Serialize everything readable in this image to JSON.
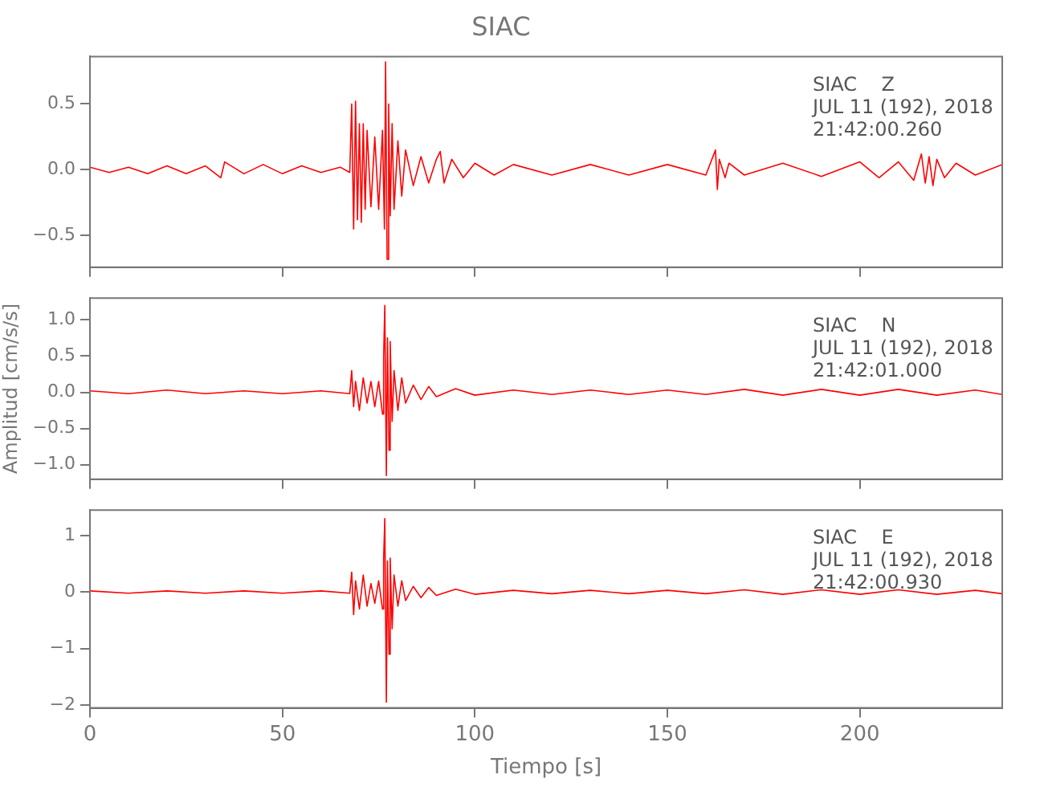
{
  "chart_data": [
    {
      "type": "line",
      "title": "SIAC",
      "xlim": [
        0,
        237
      ],
      "xticks": [
        0,
        50,
        100,
        150,
        200
      ],
      "ylim": [
        -0.74,
        0.86
      ],
      "yticks": [
        {
          "value": -0.5,
          "label": "−0.5"
        },
        {
          "value": 0,
          "label": "0.0"
        },
        {
          "value": 0.5,
          "label": "0.5"
        }
      ],
      "tick_labels": "y",
      "grid": false,
      "legend": false,
      "marker": "none",
      "line_style": "solid",
      "annotations": [
        "SIAC    Z",
        "JUL 11 (192), 2018",
        "21:42:00.260"
      ],
      "series": [
        {
          "color": "#ff0000",
          "x": [
            0,
            5,
            10,
            15,
            20,
            25,
            30,
            34,
            35,
            40,
            45,
            50,
            55,
            60,
            65,
            67.5,
            68,
            68.5,
            69,
            69.5,
            70,
            70.5,
            71,
            71.5,
            72,
            73,
            74,
            75,
            76,
            76.5,
            76.8,
            77.2,
            77.6,
            78,
            78.5,
            79,
            80,
            81,
            82,
            84,
            86,
            88,
            90,
            91,
            92,
            94,
            97,
            100,
            105,
            110,
            120,
            130,
            140,
            150,
            160,
            162.5,
            163,
            163.5,
            165,
            166,
            170,
            180,
            190,
            200,
            205,
            210,
            214,
            216,
            217,
            218,
            219,
            220,
            222,
            225,
            230,
            237
          ],
          "values": [
            0.02,
            -0.02,
            0.02,
            -0.03,
            0.03,
            -0.03,
            0.03,
            -0.06,
            0.06,
            -0.03,
            0.04,
            -0.03,
            0.03,
            -0.02,
            0.02,
            -0.02,
            0.5,
            -0.45,
            0.52,
            -0.38,
            0.35,
            -0.4,
            0.35,
            -0.3,
            0.3,
            -0.28,
            0.25,
            -0.3,
            0.3,
            -0.45,
            0.82,
            -0.68,
            0.5,
            -0.35,
            0.35,
            -0.3,
            0.22,
            -0.2,
            0.15,
            -0.12,
            0.1,
            -0.1,
            0.08,
            0.14,
            -0.1,
            0.08,
            -0.06,
            0.05,
            -0.04,
            0.04,
            -0.04,
            0.04,
            -0.04,
            0.04,
            -0.04,
            0.15,
            -0.15,
            0.08,
            -0.06,
            0.05,
            -0.04,
            0.05,
            -0.05,
            0.06,
            -0.06,
            0.06,
            -0.08,
            0.12,
            -0.1,
            0.1,
            -0.12,
            0.08,
            -0.06,
            0.05,
            -0.04,
            0.04
          ]
        }
      ]
    },
    {
      "type": "line",
      "ylabel": "Amplitud [cm/s/s]",
      "xlim": [
        0,
        237
      ],
      "xticks": [
        0,
        50,
        100,
        150,
        200
      ],
      "ylim": [
        -1.2,
        1.3
      ],
      "yticks": [
        {
          "value": -1,
          "label": "−1.0"
        },
        {
          "value": -0.5,
          "label": "−0.5"
        },
        {
          "value": 0,
          "label": "0.0"
        },
        {
          "value": 0.5,
          "label": "0.5"
        },
        {
          "value": 1,
          "label": "1.0"
        }
      ],
      "tick_labels": "y",
      "grid": false,
      "legend": false,
      "marker": "none",
      "line_style": "solid",
      "annotations": [
        "SIAC    N",
        "JUL 11 (192), 2018",
        "21:42:01.000"
      ],
      "series": [
        {
          "color": "#ff0000",
          "x": [
            0,
            10,
            20,
            30,
            40,
            50,
            60,
            67.5,
            68,
            68.5,
            69,
            70,
            71,
            72,
            73,
            74,
            75,
            76,
            76.3,
            76.6,
            77,
            77.3,
            77.7,
            78,
            78.5,
            79,
            80,
            81,
            82,
            84,
            86,
            88,
            90,
            95,
            100,
            110,
            120,
            130,
            140,
            150,
            160,
            170,
            180,
            190,
            200,
            210,
            220,
            230,
            237
          ],
          "values": [
            0.02,
            -0.02,
            0.03,
            -0.02,
            0.02,
            -0.02,
            0.02,
            -0.02,
            0.3,
            -0.2,
            0.15,
            -0.25,
            0.2,
            -0.15,
            0.15,
            -0.2,
            0.15,
            -0.3,
            0.5,
            1.2,
            -1.15,
            0.75,
            -0.8,
            0.7,
            -0.4,
            0.3,
            -0.25,
            0.2,
            -0.15,
            0.1,
            -0.1,
            0.08,
            -0.06,
            0.05,
            -0.04,
            0.03,
            -0.03,
            0.03,
            -0.03,
            0.03,
            -0.03,
            0.04,
            -0.04,
            0.04,
            -0.04,
            0.04,
            -0.04,
            0.03,
            -0.03
          ]
        }
      ]
    },
    {
      "type": "line",
      "xlabel": "Tiempo [s]",
      "xlim": [
        0,
        237
      ],
      "xticks": [
        0,
        50,
        100,
        150,
        200
      ],
      "ylim": [
        -2.05,
        1.45
      ],
      "yticks": [
        {
          "value": -2,
          "label": "−2"
        },
        {
          "value": -1,
          "label": "−1"
        },
        0,
        1
      ],
      "grid": false,
      "legend": false,
      "marker": "none",
      "line_style": "solid",
      "annotations": [
        "SIAC    E",
        "JUL 11 (192), 2018",
        "21:42:00.930"
      ],
      "series": [
        {
          "color": "#ff0000",
          "x": [
            0,
            10,
            20,
            30,
            40,
            50,
            60,
            67.5,
            68,
            68.5,
            69,
            70,
            71,
            72,
            73,
            74,
            75,
            76,
            76.3,
            76.6,
            77,
            77.3,
            77.7,
            78,
            78.5,
            79,
            80,
            81,
            82,
            84,
            86,
            88,
            90,
            95,
            100,
            110,
            120,
            130,
            140,
            150,
            160,
            170,
            180,
            190,
            200,
            210,
            220,
            230,
            237
          ],
          "values": [
            0.02,
            -0.02,
            0.02,
            -0.02,
            0.02,
            -0.02,
            0.02,
            -0.02,
            0.35,
            -0.4,
            0.2,
            -0.3,
            0.3,
            -0.25,
            0.15,
            -0.2,
            0.2,
            -0.3,
            0.6,
            1.3,
            -1.95,
            0.55,
            -1.1,
            0.6,
            -0.65,
            0.3,
            -0.25,
            0.2,
            -0.15,
            0.1,
            -0.1,
            0.08,
            -0.06,
            0.05,
            -0.04,
            0.03,
            -0.03,
            0.03,
            -0.03,
            0.03,
            -0.03,
            0.04,
            -0.04,
            0.04,
            -0.04,
            0.04,
            -0.04,
            0.03,
            -0.03
          ]
        }
      ]
    }
  ]
}
